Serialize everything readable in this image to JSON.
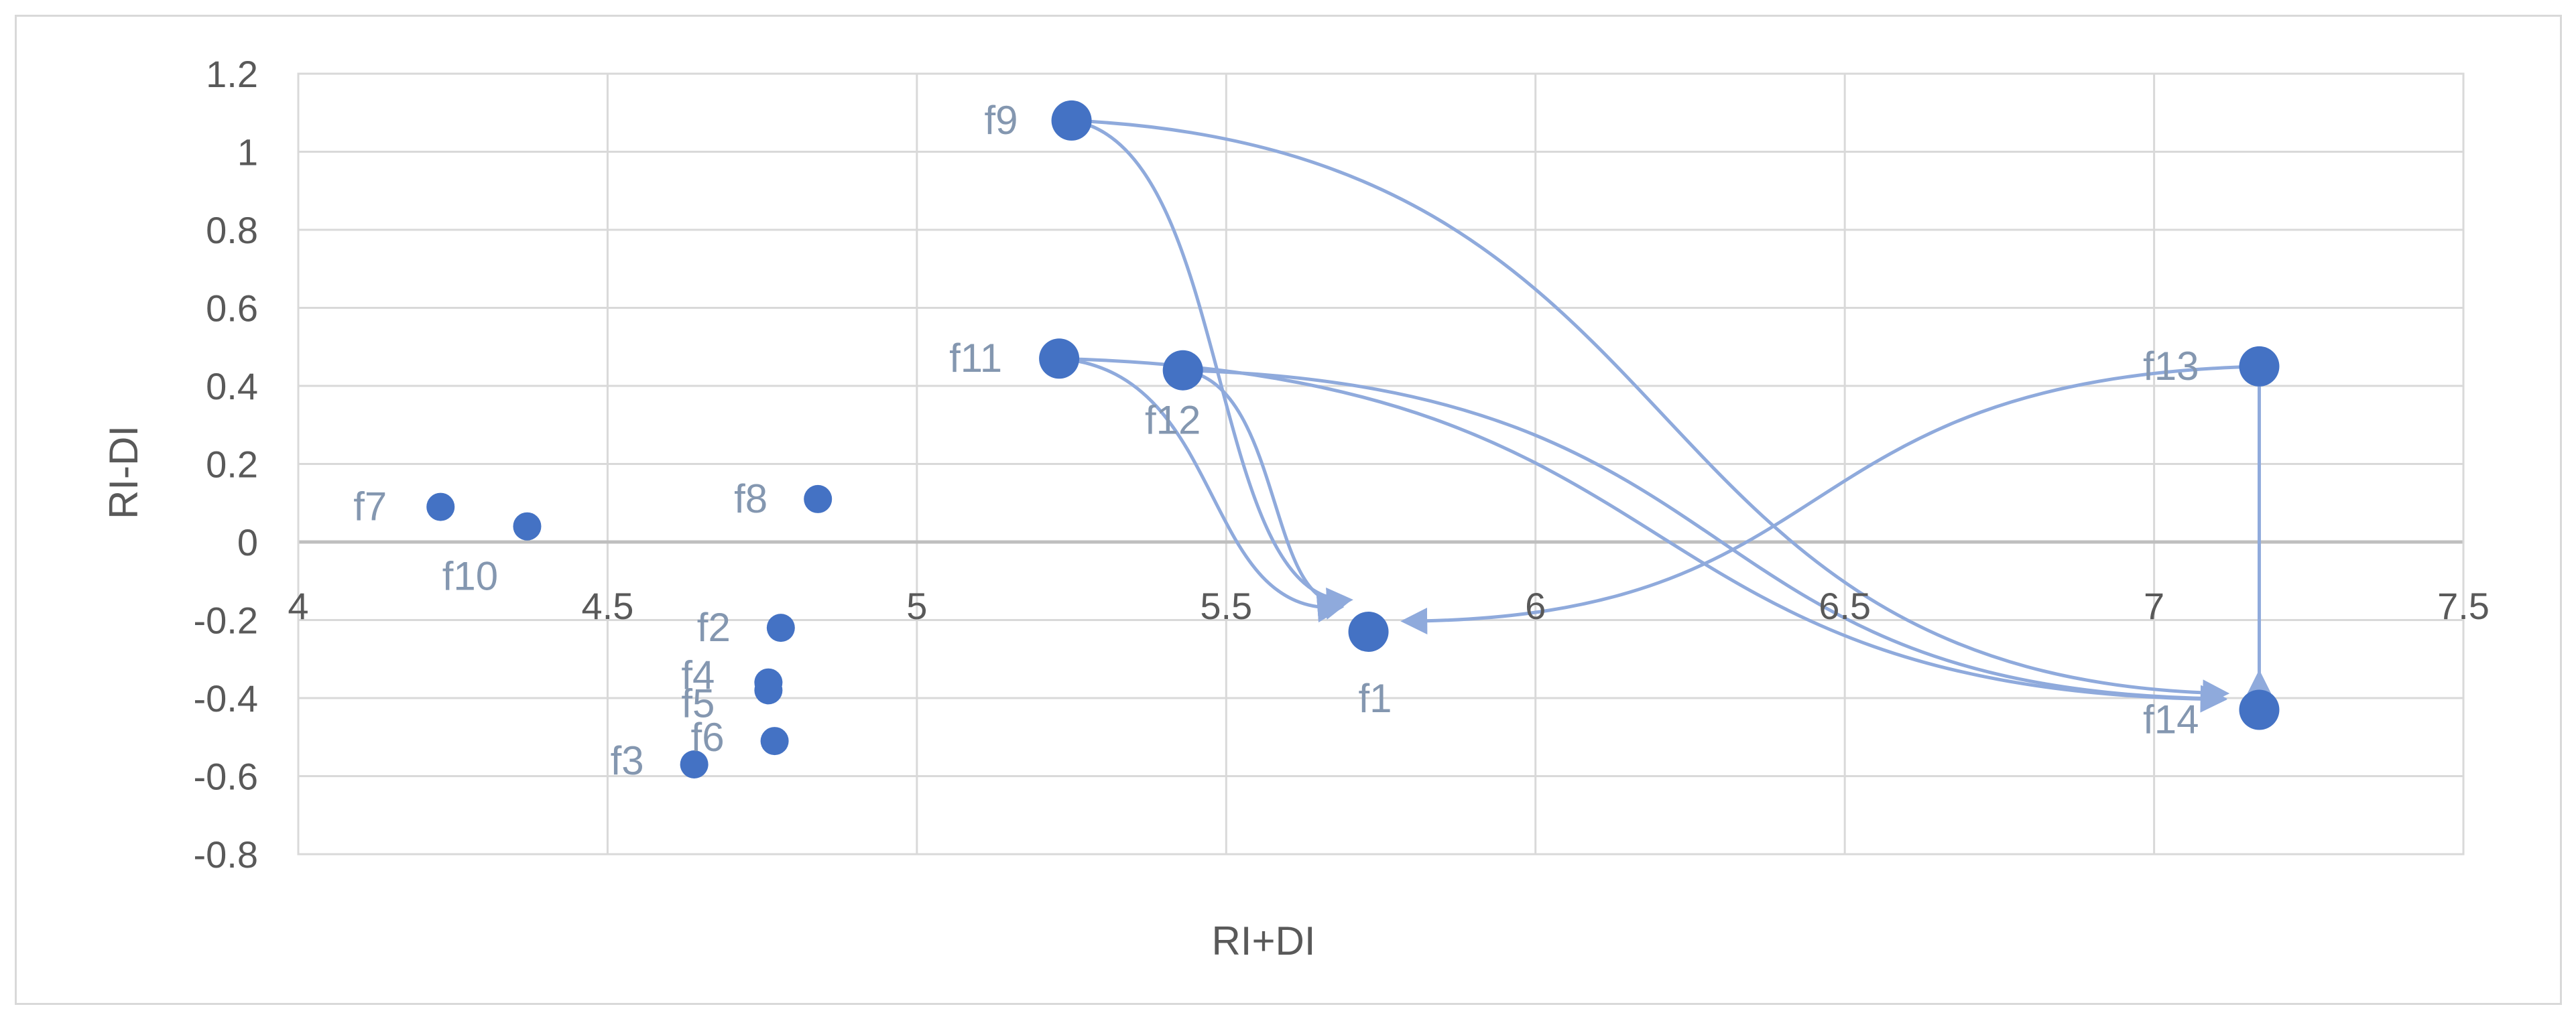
{
  "chart_data": {
    "type": "scatter",
    "title": "",
    "xlabel": "RI+DI",
    "ylabel": "RI-DI",
    "xlim": [
      4,
      7.5
    ],
    "ylim": [
      -0.8,
      1.2
    ],
    "xticks": [
      4,
      4.5,
      5,
      5.5,
      6,
      6.5,
      7,
      7.5
    ],
    "yticks": [
      -0.8,
      -0.6,
      -0.4,
      -0.2,
      0,
      0.2,
      0.4,
      0.6,
      0.8,
      1,
      1.2
    ],
    "grid": true,
    "colors": {
      "point": "#4472c4",
      "arrow": "#8faadc",
      "label": "#8497b0",
      "grid": "#d9d9d9",
      "tick": "#595959"
    },
    "points": [
      {
        "label": "f1",
        "x": 5.73,
        "y": -0.23,
        "major": true
      },
      {
        "label": "f2",
        "x": 4.78,
        "y": -0.22,
        "major": false
      },
      {
        "label": "f3",
        "x": 4.64,
        "y": -0.57,
        "major": false
      },
      {
        "label": "f4",
        "x": 4.76,
        "y": -0.36,
        "major": false
      },
      {
        "label": "f5",
        "x": 4.76,
        "y": -0.38,
        "major": false
      },
      {
        "label": "f6",
        "x": 4.77,
        "y": -0.51,
        "major": false
      },
      {
        "label": "f7",
        "x": 4.23,
        "y": 0.09,
        "major": false
      },
      {
        "label": "f8",
        "x": 4.84,
        "y": 0.11,
        "major": false
      },
      {
        "label": "f9",
        "x": 5.25,
        "y": 1.08,
        "major": true
      },
      {
        "label": "f10",
        "x": 4.37,
        "y": 0.04,
        "major": false
      },
      {
        "label": "f11",
        "x": 5.23,
        "y": 0.47,
        "major": true
      },
      {
        "label": "f12",
        "x": 5.43,
        "y": 0.44,
        "major": true
      },
      {
        "label": "f13",
        "x": 7.17,
        "y": 0.45,
        "major": true
      },
      {
        "label": "f14",
        "x": 7.17,
        "y": -0.43,
        "major": true
      }
    ],
    "arrows": [
      {
        "from": "f9",
        "to": "f1"
      },
      {
        "from": "f9",
        "to": "f14"
      },
      {
        "from": "f11",
        "to": "f1"
      },
      {
        "from": "f11",
        "to": "f14"
      },
      {
        "from": "f12",
        "to": "f1"
      },
      {
        "from": "f12",
        "to": "f14"
      },
      {
        "from": "f13",
        "to": "f1"
      },
      {
        "from": "f13",
        "to": "f14"
      }
    ]
  }
}
